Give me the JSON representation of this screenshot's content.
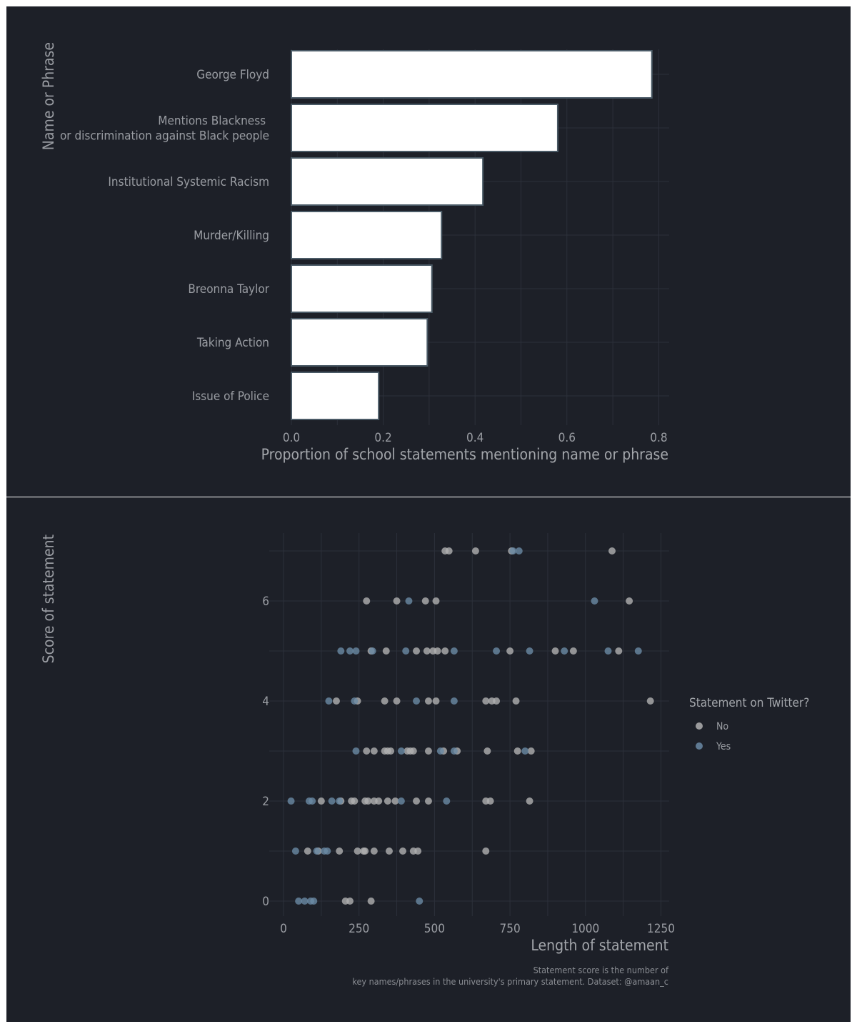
{
  "chart_data": [
    {
      "type": "bar",
      "orientation": "horizontal",
      "categories": [
        "George Floyd",
        "Mentions Blackness \nor discrimination against Black people",
        "Institutional Systemic Racism",
        "Murder/Killing",
        "Breonna Taylor",
        "Taking Action",
        "Issue of Police"
      ],
      "values": [
        0.785,
        0.58,
        0.417,
        0.327,
        0.306,
        0.296,
        0.19
      ],
      "xlabel": "Proportion of school statements mentioning name or phrase",
      "ylabel": "Name or Phrase",
      "xlim": [
        0,
        0.8
      ],
      "xticks": [
        "0.0",
        "0.2",
        "0.4",
        "0.6",
        "0.8"
      ],
      "grid": true,
      "bar_fill": "#ffffff",
      "bar_outline": "#4a5a66"
    },
    {
      "type": "scatter",
      "xlabel": "Length of statement",
      "ylabel": "Score of statement",
      "xlim": [
        0,
        1250
      ],
      "ylim": [
        0,
        7
      ],
      "xticks": [
        "0",
        "250",
        "500",
        "750",
        "1000",
        "1250"
      ],
      "yticks": [
        "0",
        "2",
        "4",
        "6"
      ],
      "grid": true,
      "legend": {
        "title": "Statement on Twitter?",
        "placement": "right",
        "items": [
          "No",
          "Yes"
        ]
      },
      "colors": {
        "No": "#b0b0b0",
        "Yes": "#6a8aa4"
      },
      "series": [
        {
          "name": "No",
          "points": [
            [
              535,
              7
            ],
            [
              548,
              7
            ],
            [
              636,
              7
            ],
            [
              755,
              7
            ],
            [
              1088,
              7
            ],
            [
              275,
              6
            ],
            [
              375,
              6
            ],
            [
              470,
              6
            ],
            [
              505,
              6
            ],
            [
              1145,
              6
            ],
            [
              290,
              5
            ],
            [
              340,
              5
            ],
            [
              440,
              5
            ],
            [
              475,
              5
            ],
            [
              495,
              5
            ],
            [
              510,
              5
            ],
            [
              535,
              5
            ],
            [
              750,
              5
            ],
            [
              900,
              5
            ],
            [
              960,
              5
            ],
            [
              1110,
              5
            ],
            [
              175,
              4
            ],
            [
              245,
              4
            ],
            [
              335,
              4
            ],
            [
              375,
              4
            ],
            [
              480,
              4
            ],
            [
              505,
              4
            ],
            [
              670,
              4
            ],
            [
              690,
              4
            ],
            [
              705,
              4
            ],
            [
              770,
              4
            ],
            [
              1215,
              4
            ],
            [
              275,
              3
            ],
            [
              300,
              3
            ],
            [
              335,
              3
            ],
            [
              345,
              3
            ],
            [
              355,
              3
            ],
            [
              410,
              3
            ],
            [
              420,
              3
            ],
            [
              430,
              3
            ],
            [
              480,
              3
            ],
            [
              530,
              3
            ],
            [
              575,
              3
            ],
            [
              675,
              3
            ],
            [
              775,
              3
            ],
            [
              820,
              3
            ],
            [
              125,
              2
            ],
            [
              190,
              2
            ],
            [
              225,
              2
            ],
            [
              235,
              2
            ],
            [
              270,
              2
            ],
            [
              280,
              2
            ],
            [
              300,
              2
            ],
            [
              315,
              2
            ],
            [
              345,
              2
            ],
            [
              370,
              2
            ],
            [
              440,
              2
            ],
            [
              480,
              2
            ],
            [
              670,
              2
            ],
            [
              685,
              2
            ],
            [
              815,
              2
            ],
            [
              80,
              1
            ],
            [
              115,
              1
            ],
            [
              185,
              1
            ],
            [
              245,
              1
            ],
            [
              265,
              1
            ],
            [
              270,
              1
            ],
            [
              300,
              1
            ],
            [
              350,
              1
            ],
            [
              395,
              1
            ],
            [
              430,
              1
            ],
            [
              445,
              1
            ],
            [
              670,
              1
            ],
            [
              205,
              0
            ],
            [
              220,
              0
            ],
            [
              290,
              0
            ]
          ]
        },
        {
          "name": "Yes",
          "points": [
            [
              760,
              7
            ],
            [
              780,
              7
            ],
            [
              415,
              6
            ],
            [
              1030,
              6
            ],
            [
              190,
              5
            ],
            [
              220,
              5
            ],
            [
              240,
              5
            ],
            [
              295,
              5
            ],
            [
              405,
              5
            ],
            [
              565,
              5
            ],
            [
              705,
              5
            ],
            [
              815,
              5
            ],
            [
              930,
              5
            ],
            [
              1075,
              5
            ],
            [
              1175,
              5
            ],
            [
              150,
              4
            ],
            [
              235,
              4
            ],
            [
              440,
              4
            ],
            [
              565,
              4
            ],
            [
              240,
              3
            ],
            [
              390,
              3
            ],
            [
              520,
              3
            ],
            [
              565,
              3
            ],
            [
              800,
              3
            ],
            [
              25,
              2
            ],
            [
              85,
              2
            ],
            [
              95,
              2
            ],
            [
              160,
              2
            ],
            [
              185,
              2
            ],
            [
              390,
              2
            ],
            [
              540,
              2
            ],
            [
              40,
              1
            ],
            [
              110,
              1
            ],
            [
              135,
              1
            ],
            [
              145,
              1
            ],
            [
              50,
              0
            ],
            [
              70,
              0
            ],
            [
              90,
              0
            ],
            [
              100,
              0
            ],
            [
              450,
              0
            ]
          ]
        }
      ]
    }
  ],
  "caption": [
    "Statement score is the number of ",
    "key names/phrases in the university's primary statement. Dataset: @amaan_c"
  ]
}
